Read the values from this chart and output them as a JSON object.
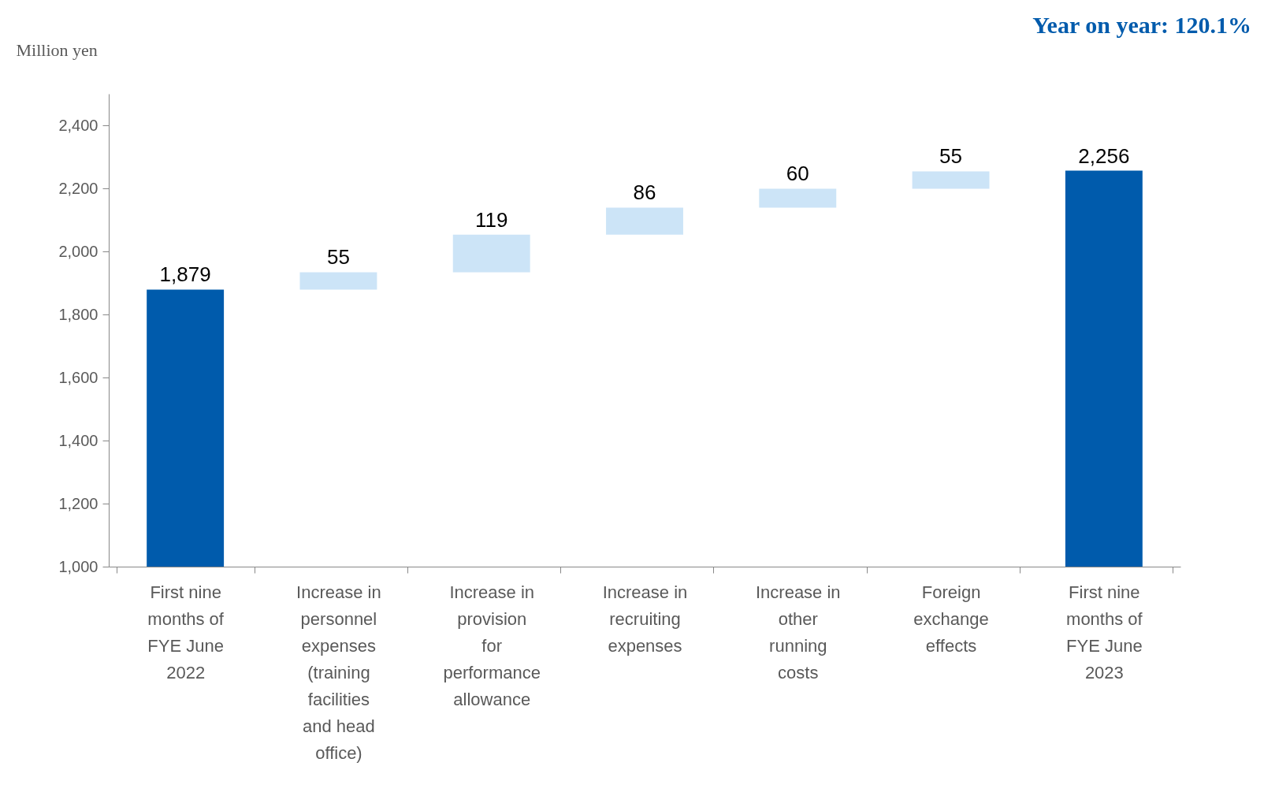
{
  "chart_data": {
    "type": "bar",
    "ylabel": "Million yen",
    "annotations": [
      "Year on year: 120.1%"
    ],
    "categories": [
      "First nine months of FYE June 2022",
      "Increase in personnel expenses (training facilities and head office)",
      "Increase in provision for performance allowance",
      "Increase in recruiting expenses",
      "Increase in other running costs",
      "Foreign exchange effects",
      "First nine months of FYE June 2023"
    ],
    "values": [
      1879,
      55,
      119,
      86,
      60,
      55,
      2256
    ],
    "value_labels": [
      "1,879",
      "55",
      "119",
      "86",
      "60",
      "55",
      "2,256"
    ],
    "base": [
      null,
      1879,
      1934,
      2053,
      2139,
      2199,
      null
    ],
    "colors": [
      "#005bac",
      "#cce4f7",
      "#cce4f7",
      "#cce4f7",
      "#cce4f7",
      "#cce4f7",
      "#005bac"
    ],
    "ylim": [
      1000,
      2500
    ],
    "yticks": [
      {
        "value": 1000,
        "label": "1,000"
      },
      {
        "value": 1200,
        "label": "1,200"
      },
      {
        "value": 1400,
        "label": "1,400"
      },
      {
        "value": 1600,
        "label": "1,600"
      },
      {
        "value": 1800,
        "label": "1,800"
      },
      {
        "value": 2000,
        "label": "2,000"
      },
      {
        "value": 2200,
        "label": "2,200"
      },
      {
        "value": 2400,
        "label": "2,400"
      }
    ],
    "grid": false
  }
}
